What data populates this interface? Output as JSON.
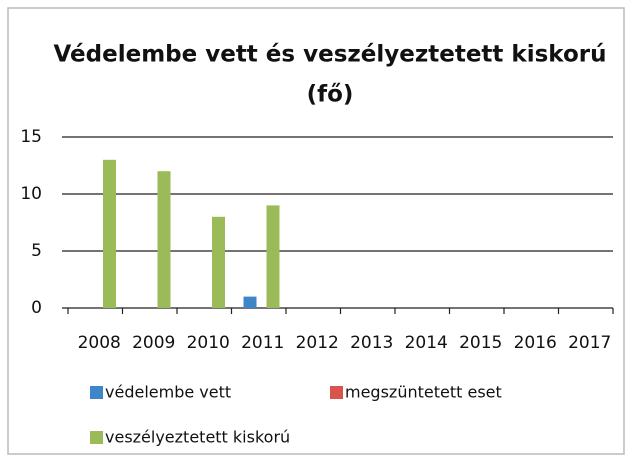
{
  "chart_data": {
    "type": "bar",
    "title": [
      "Védelembe vett és veszélyeztetett kiskorú",
      "(fő)"
    ],
    "categories": [
      "2008",
      "2009",
      "2010",
      "2011",
      "2012",
      "2013",
      "2014",
      "2015",
      "2016",
      "2017"
    ],
    "series": [
      {
        "name": "védelembe vett",
        "color": "#3f86c9",
        "values": [
          0,
          0,
          0,
          1,
          0,
          0,
          0,
          0,
          0,
          0
        ]
      },
      {
        "name": "megszüntetett eset",
        "color": "#d9534f",
        "values": [
          0,
          0,
          0,
          0,
          0,
          0,
          0,
          0,
          0,
          0
        ]
      },
      {
        "name": "veszélyeztetett kiskorú",
        "color": "#9bbb59",
        "values": [
          13,
          12,
          8,
          9,
          0,
          0,
          0,
          0,
          0,
          0
        ]
      }
    ],
    "ylim": [
      0,
      15
    ],
    "yticks": [
      0,
      5,
      10,
      15
    ],
    "grid": true
  }
}
